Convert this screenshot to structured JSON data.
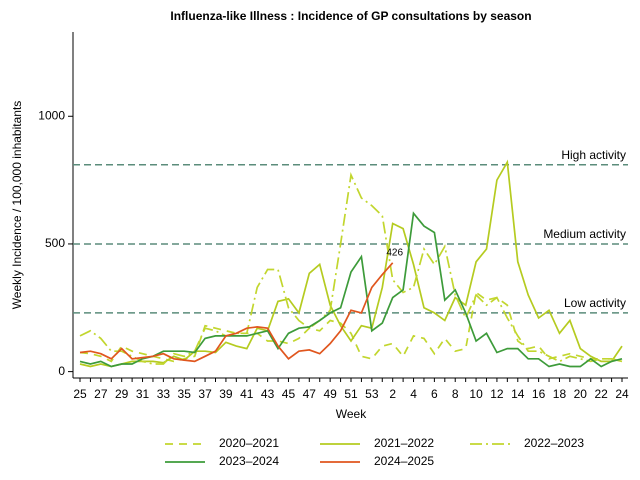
{
  "chart_data": {
    "type": "line",
    "title": "Influenza-like Illness : Incidence of GP consultations by season",
    "xlabel": "Week",
    "ylabel": "Weekly Incidence / 100,000 inhabitants",
    "categories": [
      "25",
      null,
      "27",
      null,
      "29",
      null,
      "31",
      null,
      "33",
      null,
      "35",
      null,
      "37",
      null,
      "39",
      null,
      "41",
      null,
      "43",
      null,
      "45",
      null,
      "47",
      null,
      "49",
      null,
      "51",
      null,
      "53",
      null,
      "2",
      null,
      "4",
      null,
      "6",
      null,
      "8",
      null,
      "10",
      null,
      "12",
      null,
      "14",
      null,
      "16",
      null,
      "18",
      null,
      "20",
      null,
      "22",
      null,
      "24"
    ],
    "ylim": [
      -25,
      1330
    ],
    "yticks": [
      0,
      500,
      1000
    ],
    "thresholds": [
      {
        "label": "High activity",
        "value": 810
      },
      {
        "label": "Medium activity",
        "value": 500
      },
      {
        "label": "Low activity",
        "value": 230
      }
    ],
    "threshold_color": "#5b8c7b",
    "series": [
      {
        "name": "2020–2021",
        "color": "#c2d62e",
        "dash": "dashed",
        "values": [
          75,
          70,
          60,
          40,
          100,
          80,
          70,
          60,
          50,
          40,
          50,
          60,
          180,
          170,
          160,
          150,
          150,
          150,
          120,
          120,
          110,
          130,
          170,
          160,
          200,
          190,
          150,
          60,
          50,
          100,
          110,
          60,
          140,
          130,
          70,
          130,
          80,
          90,
          310,
          280,
          290,
          260,
          120,
          90,
          100,
          50,
          60,
          70,
          60,
          50,
          50,
          50,
          40
        ]
      },
      {
        "name": "2021–2022",
        "color": "#b5cb20",
        "dash": "solid",
        "values": [
          30,
          20,
          30,
          20,
          30,
          40,
          40,
          40,
          35,
          60,
          45,
          80,
          80,
          75,
          115,
          100,
          90,
          170,
          160,
          275,
          285,
          230,
          385,
          420,
          260,
          180,
          120,
          180,
          170,
          330,
          580,
          560,
          420,
          250,
          230,
          200,
          290,
          260,
          430,
          480,
          750,
          820,
          430,
          300,
          210,
          240,
          150,
          200,
          90,
          60,
          40,
          40,
          100
        ]
      },
      {
        "name": "2022–2023",
        "color": "#c2d62e",
        "dash": "dashdot",
        "values": [
          140,
          160,
          130,
          80,
          80,
          60,
          40,
          30,
          30,
          70,
          60,
          80,
          170,
          160,
          140,
          150,
          150,
          330,
          400,
          400,
          250,
          200,
          170,
          200,
          240,
          500,
          770,
          680,
          650,
          610,
          360,
          310,
          330,
          480,
          420,
          490,
          300,
          210,
          300,
          260,
          290,
          210,
          140,
          80,
          80,
          60,
          40,
          60,
          50,
          40,
          50,
          50,
          40
        ]
      },
      {
        "name": "2023–2024",
        "color": "#3d9b3a",
        "dash": "solid",
        "values": [
          40,
          30,
          40,
          20,
          30,
          30,
          50,
          60,
          80,
          80,
          80,
          75,
          130,
          140,
          140,
          140,
          140,
          150,
          160,
          90,
          150,
          170,
          175,
          200,
          230,
          250,
          390,
          450,
          160,
          190,
          290,
          320,
          620,
          570,
          545,
          280,
          320,
          230,
          120,
          150,
          75,
          90,
          90,
          50,
          50,
          20,
          30,
          20,
          20,
          50,
          20,
          40,
          50
        ]
      },
      {
        "name": "2024–2025",
        "color": "#e0561e",
        "dash": "solid",
        "values": [
          75,
          80,
          70,
          50,
          90,
          50,
          55,
          60,
          70,
          50,
          45,
          40,
          60,
          80,
          140,
          150,
          170,
          175,
          170,
          100,
          50,
          80,
          85,
          70,
          110,
          160,
          240,
          230,
          330,
          380,
          426,
          null,
          null,
          null,
          null,
          null,
          null,
          null,
          null,
          null,
          null,
          null,
          null,
          null,
          null,
          null,
          null,
          null,
          null,
          null,
          null,
          null,
          null
        ]
      }
    ]
  }
}
